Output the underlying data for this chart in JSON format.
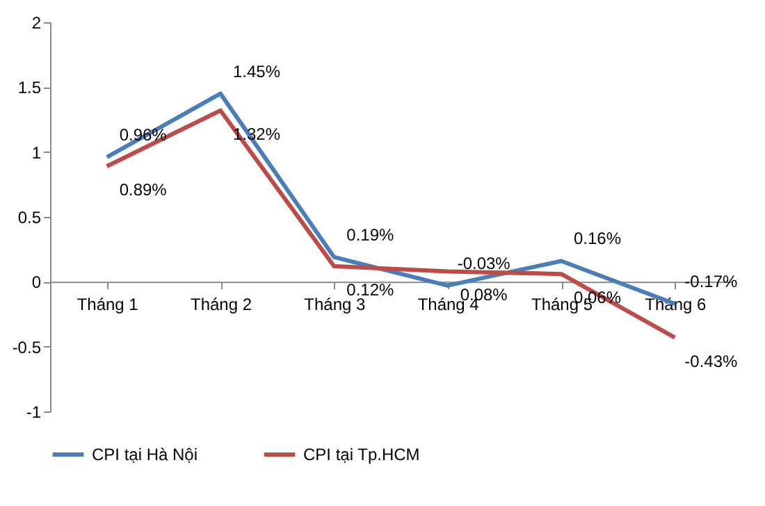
{
  "chart_data": {
    "type": "line",
    "categories": [
      "Tháng 1",
      "Tháng 2",
      "Tháng 3",
      "Tháng 4",
      "Tháng 5",
      "Tháng 6"
    ],
    "series": [
      {
        "name": "CPI tại Hà Nội",
        "color": "#4a7ebb",
        "values": [
          0.96,
          1.45,
          0.19,
          -0.03,
          0.16,
          -0.17
        ],
        "value_labels": [
          "0.96%",
          "1.45%",
          "0.19%",
          "-0.03%",
          "0.16%",
          "-0.17%"
        ]
      },
      {
        "name": "CPI tại Tp.HCM",
        "color": "#be4b48",
        "values": [
          0.89,
          1.32,
          0.12,
          0.08,
          0.06,
          -0.43
        ],
        "value_labels": [
          "0.89%",
          "1.32%",
          "0.12%",
          "0.08%",
          "0.06%",
          "-0.43%"
        ]
      }
    ],
    "ylim": [
      -1,
      2
    ],
    "yticks": [
      -1,
      -0.5,
      0,
      0.5,
      1,
      1.5,
      2
    ],
    "grid": false,
    "legend": "bottom",
    "marker": "none",
    "line_style": "solid"
  }
}
